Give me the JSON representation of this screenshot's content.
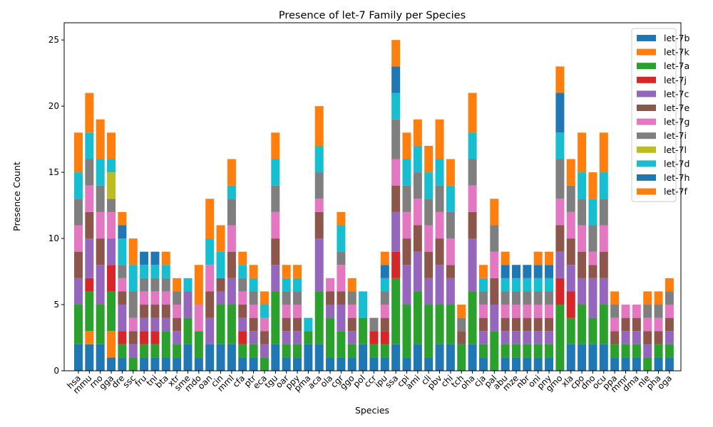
{
  "chart_data": {
    "type": "bar",
    "stacked": true,
    "title": "Presence of let-7 Family per Species",
    "xlabel": "Species",
    "ylabel": "Presence Count",
    "ylim": [
      0,
      26.3
    ],
    "yticks": [
      0,
      5,
      10,
      15,
      20,
      25
    ],
    "legend_position": "top-right",
    "categories": [
      "hsa",
      "mmu",
      "rno",
      "gga",
      "dre",
      "ssc",
      "fru",
      "tni",
      "bta",
      "xtr",
      "sme",
      "mdo",
      "oan",
      "cin",
      "mml",
      "cfa",
      "ptr",
      "eca",
      "tgu",
      "oar",
      "ppy",
      "pma",
      "aca",
      "ola",
      "cgr",
      "ggo",
      "pol",
      "ccr",
      "ipu",
      "ssa",
      "cpi",
      "ami",
      "cli",
      "pbv",
      "chi",
      "tch",
      "oha",
      "cja",
      "pal",
      "abu",
      "mze",
      "nbr",
      "oni",
      "pny",
      "gmo",
      "xla",
      "cpo",
      "dno",
      "ocu",
      "ppa",
      "mmr",
      "dma",
      "nle",
      "pha",
      "oga"
    ],
    "series": [
      {
        "name": "let-7b",
        "color": "#1f77b4",
        "values": [
          2,
          2,
          2,
          1,
          1,
          0,
          1,
          1,
          1,
          1,
          2,
          1,
          2,
          2,
          2,
          1,
          1,
          0,
          2,
          1,
          1,
          2,
          2,
          1,
          1,
          1,
          2,
          1,
          1,
          2,
          1,
          2,
          1,
          2,
          2,
          0,
          2,
          1,
          0,
          1,
          1,
          1,
          1,
          1,
          0,
          2,
          2,
          2,
          2,
          1,
          1,
          1,
          0,
          1,
          1
        ]
      },
      {
        "name": "let-7k",
        "color": "#ff7f0e",
        "values": [
          0,
          1,
          0,
          2,
          0,
          0,
          0,
          0,
          0,
          0,
          0,
          0,
          0,
          0,
          0,
          0,
          0,
          0,
          0,
          0,
          0,
          0,
          0,
          0,
          0,
          0,
          0,
          0,
          0,
          0,
          0,
          0,
          0,
          0,
          0,
          0,
          0,
          0,
          0,
          0,
          0,
          0,
          0,
          0,
          0,
          0,
          0,
          0,
          0,
          0,
          0,
          0,
          0,
          0,
          0
        ]
      },
      {
        "name": "let-7a",
        "color": "#2ca02c",
        "values": [
          3,
          3,
          3,
          3,
          1,
          1,
          1,
          1,
          2,
          1,
          2,
          2,
          0,
          3,
          3,
          1,
          1,
          1,
          4,
          1,
          1,
          1,
          4,
          3,
          2,
          1,
          2,
          1,
          1,
          5,
          4,
          4,
          4,
          3,
          3,
          2,
          4,
          1,
          3,
          1,
          1,
          1,
          1,
          1,
          5,
          2,
          3,
          2,
          3,
          1,
          1,
          1,
          1,
          1,
          1
        ]
      },
      {
        "name": "let-7j",
        "color": "#d62728",
        "values": [
          0,
          1,
          0,
          2,
          1,
          0,
          1,
          1,
          0,
          0,
          0,
          0,
          0,
          0,
          0,
          1,
          0,
          0,
          0,
          0,
          0,
          0,
          0,
          0,
          0,
          0,
          0,
          1,
          1,
          2,
          0,
          0,
          0,
          0,
          0,
          0,
          0,
          0,
          0,
          0,
          0,
          0,
          0,
          0,
          2,
          2,
          0,
          0,
          0,
          0,
          0,
          0,
          0,
          0,
          0
        ]
      },
      {
        "name": "let-7c",
        "color": "#9467bd",
        "values": [
          2,
          3,
          3,
          2,
          2,
          1,
          1,
          1,
          1,
          1,
          2,
          0,
          2,
          1,
          2,
          1,
          1,
          1,
          2,
          1,
          1,
          0,
          4,
          1,
          2,
          1,
          0,
          0,
          0,
          3,
          3,
          3,
          2,
          3,
          2,
          0,
          4,
          1,
          2,
          1,
          1,
          1,
          1,
          1,
          2,
          2,
          2,
          3,
          2,
          0,
          1,
          1,
          1,
          0,
          1
        ]
      },
      {
        "name": "let-7e",
        "color": "#8c564b",
        "values": [
          2,
          2,
          2,
          0,
          1,
          1,
          1,
          1,
          1,
          1,
          0,
          0,
          2,
          1,
          2,
          1,
          1,
          1,
          2,
          1,
          1,
          0,
          2,
          1,
          1,
          1,
          0,
          0,
          1,
          2,
          2,
          2,
          2,
          2,
          1,
          1,
          2,
          1,
          2,
          1,
          1,
          1,
          1,
          1,
          2,
          2,
          2,
          1,
          2,
          1,
          1,
          1,
          1,
          1,
          1
        ]
      },
      {
        "name": "let-7g",
        "color": "#e377c2",
        "values": [
          2,
          2,
          2,
          2,
          1,
          1,
          1,
          1,
          1,
          1,
          0,
          2,
          2,
          0,
          2,
          1,
          1,
          1,
          2,
          1,
          1,
          0,
          1,
          1,
          2,
          1,
          0,
          0,
          1,
          2,
          2,
          2,
          2,
          2,
          2,
          0,
          2,
          1,
          2,
          1,
          1,
          1,
          1,
          1,
          2,
          2,
          2,
          1,
          2,
          1,
          1,
          1,
          1,
          1,
          1
        ]
      },
      {
        "name": "let-7i",
        "color": "#7f7f7f",
        "values": [
          2,
          2,
          2,
          1,
          1,
          2,
          1,
          1,
          1,
          1,
          0,
          0,
          0,
          0,
          2,
          1,
          1,
          0,
          2,
          1,
          1,
          0,
          2,
          0,
          1,
          1,
          0,
          1,
          1,
          3,
          2,
          2,
          2,
          2,
          2,
          1,
          2,
          1,
          2,
          1,
          1,
          1,
          1,
          1,
          3,
          2,
          2,
          2,
          2,
          1,
          0,
          0,
          1,
          1,
          1
        ]
      },
      {
        "name": "let-7l",
        "color": "#bcbd22",
        "values": [
          0,
          0,
          0,
          2,
          0,
          0,
          0,
          0,
          0,
          0,
          0,
          0,
          0,
          0,
          0,
          0,
          0,
          0,
          0,
          0,
          0,
          0,
          0,
          0,
          0,
          0,
          0,
          0,
          0,
          0,
          0,
          0,
          0,
          0,
          0,
          0,
          0,
          0,
          0,
          0,
          0,
          0,
          0,
          0,
          0,
          0,
          0,
          0,
          0,
          0,
          0,
          0,
          0,
          0,
          0
        ]
      },
      {
        "name": "let-7d",
        "color": "#17becf",
        "values": [
          2,
          2,
          2,
          1,
          2,
          2,
          1,
          1,
          1,
          0,
          1,
          0,
          2,
          2,
          1,
          1,
          1,
          1,
          2,
          1,
          1,
          1,
          2,
          0,
          2,
          0,
          2,
          0,
          1,
          2,
          2,
          2,
          2,
          2,
          2,
          0,
          2,
          1,
          0,
          1,
          1,
          1,
          1,
          1,
          2,
          0,
          2,
          2,
          2,
          0,
          0,
          0,
          0,
          0,
          0
        ]
      },
      {
        "name": "let-7h",
        "color": "#1f77b4",
        "values": [
          0,
          0,
          0,
          0,
          1,
          0,
          1,
          1,
          0,
          0,
          0,
          0,
          0,
          0,
          0,
          0,
          0,
          0,
          0,
          0,
          0,
          0,
          0,
          0,
          0,
          0,
          0,
          0,
          1,
          2,
          0,
          0,
          0,
          0,
          0,
          0,
          0,
          0,
          0,
          1,
          1,
          1,
          1,
          1,
          3,
          0,
          0,
          0,
          0,
          0,
          0,
          0,
          0,
          0,
          0
        ]
      },
      {
        "name": "let-7f",
        "color": "#ff7f0e",
        "values": [
          3,
          3,
          3,
          2,
          1,
          2,
          0,
          0,
          1,
          1,
          0,
          3,
          3,
          2,
          2,
          1,
          1,
          1,
          2,
          1,
          1,
          0,
          3,
          0,
          1,
          1,
          0,
          0,
          1,
          2,
          2,
          2,
          2,
          3,
          2,
          1,
          3,
          1,
          2,
          1,
          0,
          0,
          1,
          1,
          2,
          2,
          3,
          2,
          3,
          1,
          0,
          0,
          1,
          1,
          1
        ]
      }
    ]
  }
}
